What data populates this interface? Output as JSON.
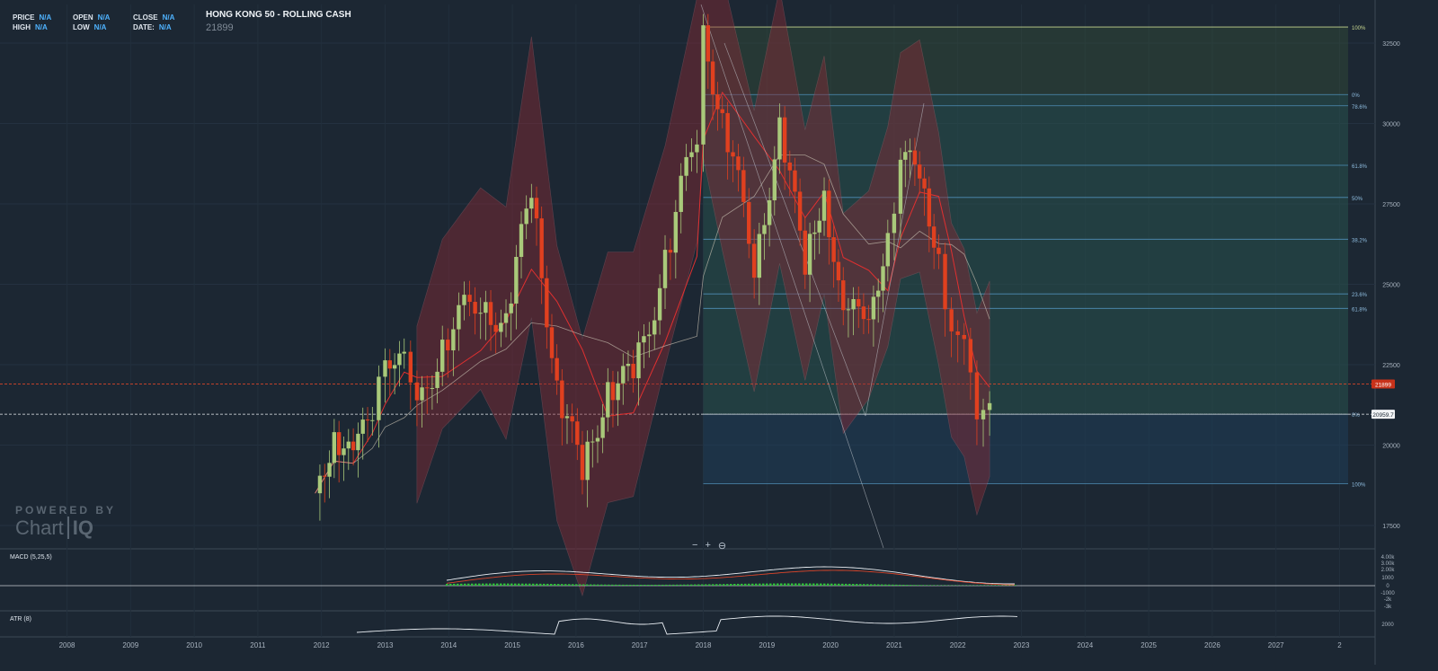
{
  "hud": {
    "price_label": "PRICE",
    "price_value": "N/A",
    "high_label": "HIGH",
    "high_value": "N/A",
    "open_label": "OPEN",
    "open_value": "N/A",
    "low_label": "LOW",
    "low_value": "N/A",
    "close_label": "CLOSE",
    "close_value": "N/A",
    "date_label": "DATE:",
    "date_value": "N/A"
  },
  "title": "HONG KONG 50 - ROLLING CASH",
  "current_price": "21899",
  "price_flag": "21899",
  "level_flag": "20959.7",
  "watermark": {
    "powered": "POWERED BY",
    "chart": "Chart",
    "iq": "IQ"
  },
  "zoom": {
    "minus": "−",
    "plus": "+",
    "reset": "⊖"
  },
  "panels": {
    "macd_label": "MACD (5,25,5)",
    "atr_label": "ATR (8)"
  },
  "colors": {
    "background": "#1c2733",
    "up": "#a9c97a",
    "down": "#e0401f",
    "band": "#8a2a35",
    "fib_line": "#4f8fb8"
  },
  "chart_data": {
    "type": "candlestick",
    "title": "HONG KONG 50 - ROLLING CASH",
    "x_ticks": [
      "2008",
      "2009",
      "2010",
      "2011",
      "2012",
      "2013",
      "2014",
      "2015",
      "2016",
      "2017",
      "2018",
      "2019",
      "2020",
      "2021",
      "2022",
      "2023",
      "2024",
      "2025",
      "2026",
      "2027",
      "2"
    ],
    "y_ticks": [
      "32500",
      "30000",
      "27500",
      "25000",
      "22500",
      "20000",
      "17500"
    ],
    "ylim": [
      16800,
      33700
    ],
    "fib_top_labels": [
      "100%",
      "0%",
      "78.6%",
      "61.8%",
      "50%",
      "38.2%",
      "23.6%",
      "61.8%",
      "0%",
      "100%"
    ],
    "fib_top_values": [
      33000,
      30900,
      30550,
      28700,
      27700,
      26400,
      24700,
      24250,
      20959.7,
      18800
    ],
    "macd_ticks": [
      "4.00k",
      "3.00k",
      "2.00k",
      "1000",
      "0",
      "-1000",
      "-2k",
      "-3k"
    ],
    "atr_ticks": [
      "2000"
    ],
    "monthly_close_approx": [
      {
        "x": 2011.9,
        "close": 18500
      },
      {
        "x": 2012.2,
        "close": 20500
      },
      {
        "x": 2012.5,
        "close": 19300
      },
      {
        "x": 2012.8,
        "close": 21300
      },
      {
        "x": 2013.0,
        "close": 23200
      },
      {
        "x": 2013.3,
        "close": 22300
      },
      {
        "x": 2013.5,
        "close": 20800
      },
      {
        "x": 2013.9,
        "close": 23300
      },
      {
        "x": 2014.5,
        "close": 24700
      },
      {
        "x": 2014.9,
        "close": 23600
      },
      {
        "x": 2015.3,
        "close": 28100
      },
      {
        "x": 2015.7,
        "close": 21700
      },
      {
        "x": 2016.1,
        "close": 19100
      },
      {
        "x": 2016.5,
        "close": 21900
      },
      {
        "x": 2016.9,
        "close": 22000
      },
      {
        "x": 2017.4,
        "close": 25700
      },
      {
        "x": 2017.9,
        "close": 29900
      },
      {
        "x": 2018.0,
        "close": 32900
      },
      {
        "x": 2018.3,
        "close": 30100
      },
      {
        "x": 2018.8,
        "close": 25800
      },
      {
        "x": 2019.2,
        "close": 29700
      },
      {
        "x": 2019.6,
        "close": 25700
      },
      {
        "x": 2019.9,
        "close": 28200
      },
      {
        "x": 2020.2,
        "close": 23600
      },
      {
        "x": 2020.6,
        "close": 24500
      },
      {
        "x": 2020.9,
        "close": 26300
      },
      {
        "x": 2021.1,
        "close": 28500
      },
      {
        "x": 2021.4,
        "close": 28800
      },
      {
        "x": 2021.7,
        "close": 25900
      },
      {
        "x": 2021.9,
        "close": 23400
      },
      {
        "x": 2022.1,
        "close": 22700
      },
      {
        "x": 2022.3,
        "close": 20800
      },
      {
        "x": 2022.5,
        "close": 21899
      }
    ]
  }
}
